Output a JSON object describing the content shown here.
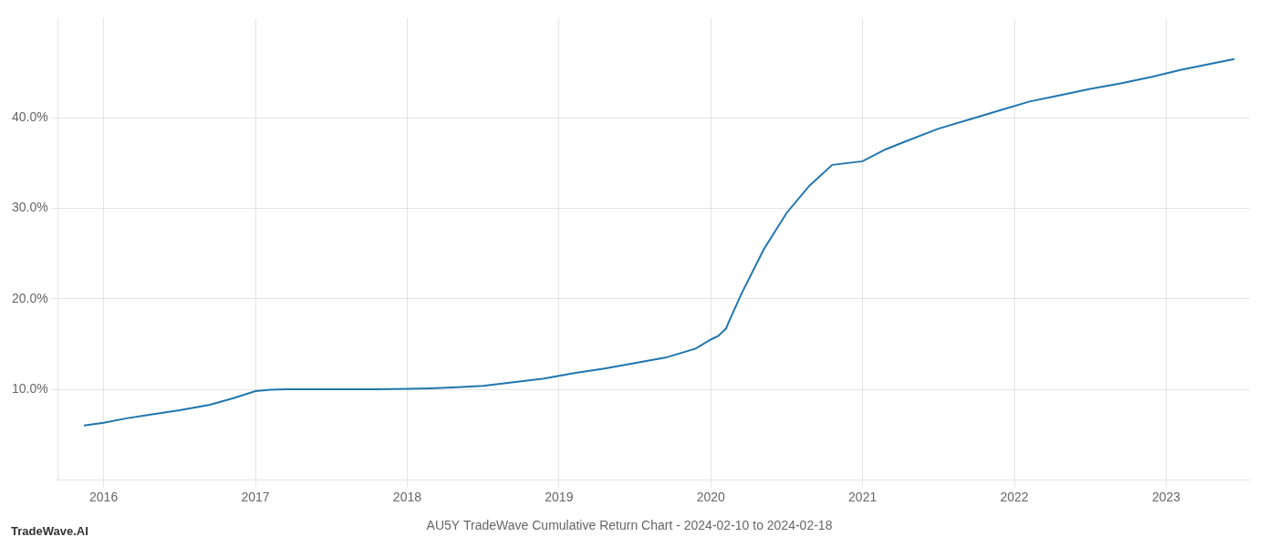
{
  "chart_data": {
    "type": "line",
    "title": "AU5Y TradeWave Cumulative Return Chart - 2024-02-10 to 2024-02-18",
    "annotations": [
      "TradeWave.AI"
    ],
    "color": "#2176AE",
    "grid": true,
    "x": [
      2015.87,
      2016.0,
      2016.15,
      2016.3,
      2016.5,
      2016.7,
      2016.85,
      2017.0,
      2017.1,
      2017.2,
      2017.4,
      2017.6,
      2017.8,
      2018.0,
      2018.15,
      2018.3,
      2018.5,
      2018.7,
      2018.9,
      2019.1,
      2019.3,
      2019.5,
      2019.7,
      2019.9,
      2020.0,
      2020.05,
      2020.08,
      2020.1,
      2020.12,
      2020.2,
      2020.35,
      2020.5,
      2020.65,
      2020.8,
      2021.0,
      2021.15,
      2021.3,
      2021.5,
      2021.7,
      2021.9,
      2022.1,
      2022.3,
      2022.5,
      2022.7,
      2022.9,
      2023.1,
      2023.3,
      2023.45
    ],
    "values": [
      6.0,
      6.3,
      6.8,
      7.2,
      7.7,
      8.3,
      9.0,
      9.8,
      9.95,
      10.0,
      10.0,
      10.0,
      10.0,
      10.05,
      10.1,
      10.2,
      10.4,
      10.8,
      11.2,
      11.8,
      12.3,
      12.9,
      13.5,
      14.5,
      15.5,
      15.9,
      16.4,
      16.7,
      17.5,
      20.5,
      25.5,
      29.5,
      32.5,
      34.8,
      35.2,
      36.5,
      37.5,
      38.8,
      39.8,
      40.8,
      41.8,
      42.5,
      43.2,
      43.8,
      44.5,
      45.3,
      46.0,
      46.5
    ],
    "xlim": [
      2015.7,
      2023.55
    ],
    "xticks": [
      2016,
      2017,
      2018,
      2019,
      2020,
      2021,
      2022,
      2023
    ],
    "ylim": [
      0,
      51
    ],
    "yticks": [
      {
        "value": 10.0,
        "label": "10.0%"
      },
      {
        "value": 20.0,
        "label": "20.0%"
      },
      {
        "value": 30.0,
        "label": "30.0%"
      },
      {
        "value": 40.0,
        "label": "40.0%"
      }
    ]
  }
}
